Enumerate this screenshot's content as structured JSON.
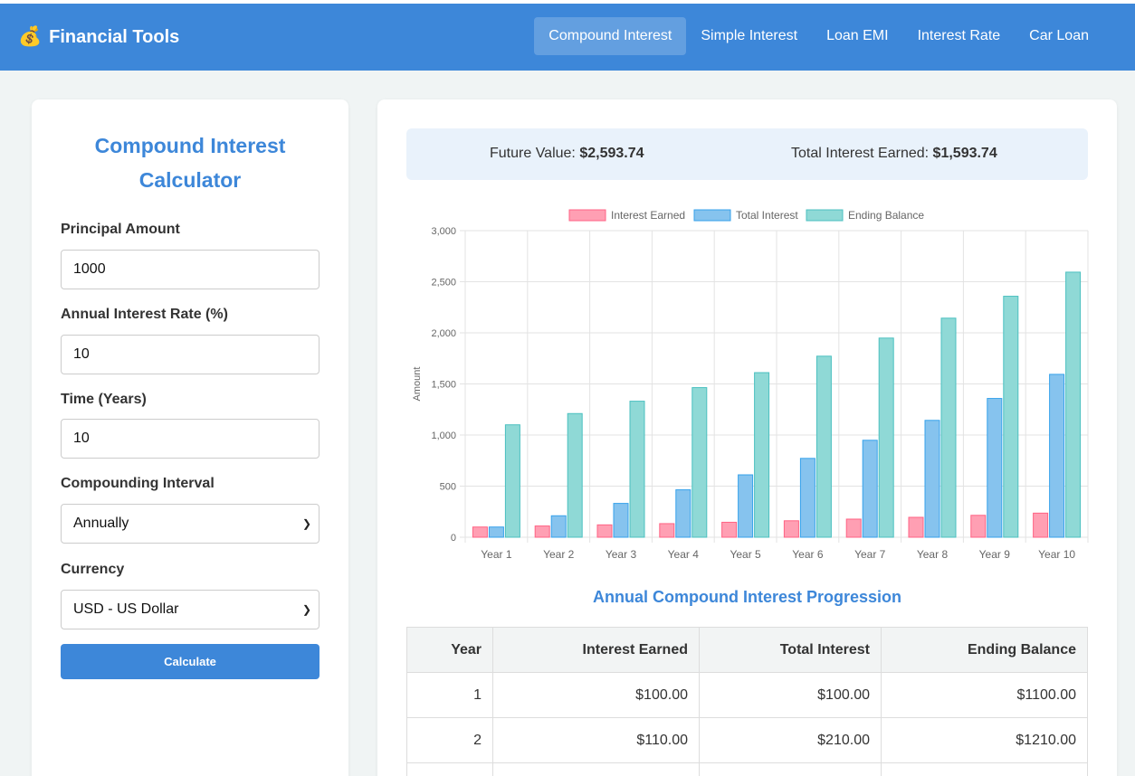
{
  "nav": {
    "brand_icon": "💰",
    "brand": "Financial Tools",
    "links": [
      "Compound Interest",
      "Simple Interest",
      "Loan EMI",
      "Interest Rate",
      "Car Loan"
    ],
    "active_index": 0
  },
  "calculator": {
    "title_line1": "Compound Interest",
    "title_line2": "Calculator",
    "principal_label": "Principal Amount",
    "principal_value": "1000",
    "rate_label": "Annual Interest Rate (%)",
    "rate_value": "10",
    "time_label": "Time (Years)",
    "time_value": "10",
    "interval_label": "Compounding Interval",
    "interval_value": "Annually",
    "currency_label": "Currency",
    "currency_value": "USD - US Dollar",
    "calculate_label": "Calculate"
  },
  "summary": {
    "future_value_label": "Future Value:",
    "future_value": "$2,593.74",
    "total_interest_label": "Total Interest Earned:",
    "total_interest": "$1,593.74"
  },
  "chart_data": {
    "type": "bar",
    "categories": [
      "Year 1",
      "Year 2",
      "Year 3",
      "Year 4",
      "Year 5",
      "Year 6",
      "Year 7",
      "Year 8",
      "Year 9",
      "Year 10"
    ],
    "series": [
      {
        "name": "Interest Earned",
        "color": "#ff9fb3",
        "border": "#ff6384",
        "values": [
          100,
          110,
          121,
          133.1,
          146.41,
          161.05,
          177.16,
          194.87,
          214.36,
          235.79
        ]
      },
      {
        "name": "Total Interest",
        "color": "#86c3ee",
        "border": "#36a2eb",
        "values": [
          100,
          210,
          331,
          464.1,
          610.51,
          771.56,
          948.72,
          1143.59,
          1357.95,
          1593.74
        ]
      },
      {
        "name": "Ending Balance",
        "color": "#8fd9d6",
        "border": "#4bc0c0",
        "values": [
          1100,
          1210,
          1331,
          1464.1,
          1610.51,
          1771.56,
          1948.72,
          2143.59,
          2357.95,
          2593.74
        ]
      }
    ],
    "ylabel": "Amount",
    "xlabel": "",
    "ylim": [
      0,
      3000
    ],
    "yticks": [
      0,
      500,
      1000,
      1500,
      2000,
      2500,
      3000
    ],
    "ytick_labels": [
      "0",
      "500",
      "1,000",
      "1,500",
      "2,000",
      "2,500",
      "3,000"
    ],
    "legend": "top"
  },
  "table": {
    "title": "Annual Compound Interest Progression",
    "headers": [
      "Year",
      "Interest Earned",
      "Total Interest",
      "Ending Balance"
    ],
    "rows": [
      [
        "1",
        "$100.00",
        "$100.00",
        "$1100.00"
      ],
      [
        "2",
        "$110.00",
        "$210.00",
        "$1210.00"
      ],
      [
        "",
        "",
        "",
        ""
      ]
    ]
  }
}
